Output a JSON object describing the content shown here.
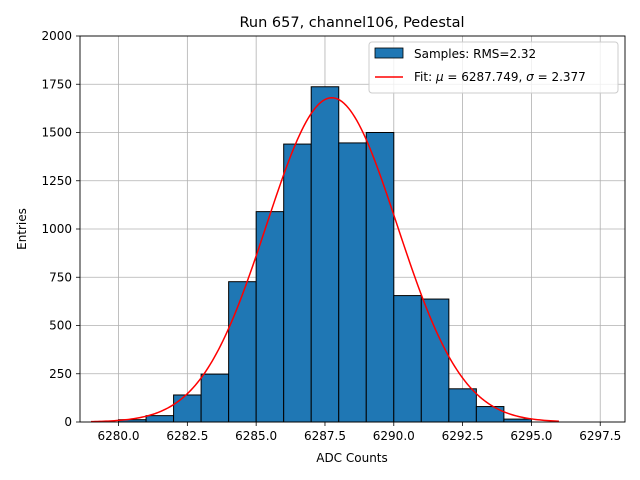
{
  "chart_data": {
    "type": "bar",
    "title": "Run 657, channel106, Pedestal",
    "xlabel": "ADC Counts",
    "ylabel": "Entries",
    "xlim": [
      6278.6,
      6298.4
    ],
    "ylim": [
      0,
      2000
    ],
    "x_ticks": [
      6280.0,
      6282.5,
      6285.0,
      6287.5,
      6290.0,
      6292.5,
      6295.0,
      6297.5
    ],
    "x_tick_labels": [
      "6280.0",
      "6282.5",
      "6285.0",
      "6287.5",
      "6290.0",
      "6292.5",
      "6295.0",
      "6297.5"
    ],
    "y_ticks": [
      0,
      250,
      500,
      750,
      1000,
      1250,
      1500,
      1750,
      2000
    ],
    "y_tick_labels": [
      "0",
      "250",
      "500",
      "750",
      "1000",
      "1250",
      "1500",
      "1750",
      "2000"
    ],
    "grid": true,
    "legend_position": "top-right",
    "bins": [
      {
        "start": 6280,
        "end": 6281,
        "value": 12
      },
      {
        "start": 6281,
        "end": 6282,
        "value": 33
      },
      {
        "start": 6282,
        "end": 6283,
        "value": 140
      },
      {
        "start": 6283,
        "end": 6284,
        "value": 248
      },
      {
        "start": 6284,
        "end": 6285,
        "value": 727
      },
      {
        "start": 6285,
        "end": 6286,
        "value": 1090
      },
      {
        "start": 6286,
        "end": 6287,
        "value": 1440
      },
      {
        "start": 6287,
        "end": 6288,
        "value": 1737
      },
      {
        "start": 6288,
        "end": 6289,
        "value": 1446
      },
      {
        "start": 6289,
        "end": 6290,
        "value": 1500
      },
      {
        "start": 6290,
        "end": 6291,
        "value": 655
      },
      {
        "start": 6291,
        "end": 6292,
        "value": 637
      },
      {
        "start": 6292,
        "end": 6293,
        "value": 172
      },
      {
        "start": 6293,
        "end": 6294,
        "value": 80
      },
      {
        "start": 6294,
        "end": 6295,
        "value": 15
      }
    ],
    "histogram_label": "Samples: RMS=2.32",
    "histogram_color": "#1f77b4",
    "fit": {
      "mu": 6287.749,
      "sigma": 2.377,
      "amplitude": 1680,
      "x_range": [
        6279,
        6296
      ],
      "color": "#ff0000",
      "label_prefix": "Fit: ",
      "mu_symbol": "μ",
      "mu_text": " = 6287.749, ",
      "sigma_symbol": "σ",
      "sigma_text": " = 2.377"
    }
  }
}
